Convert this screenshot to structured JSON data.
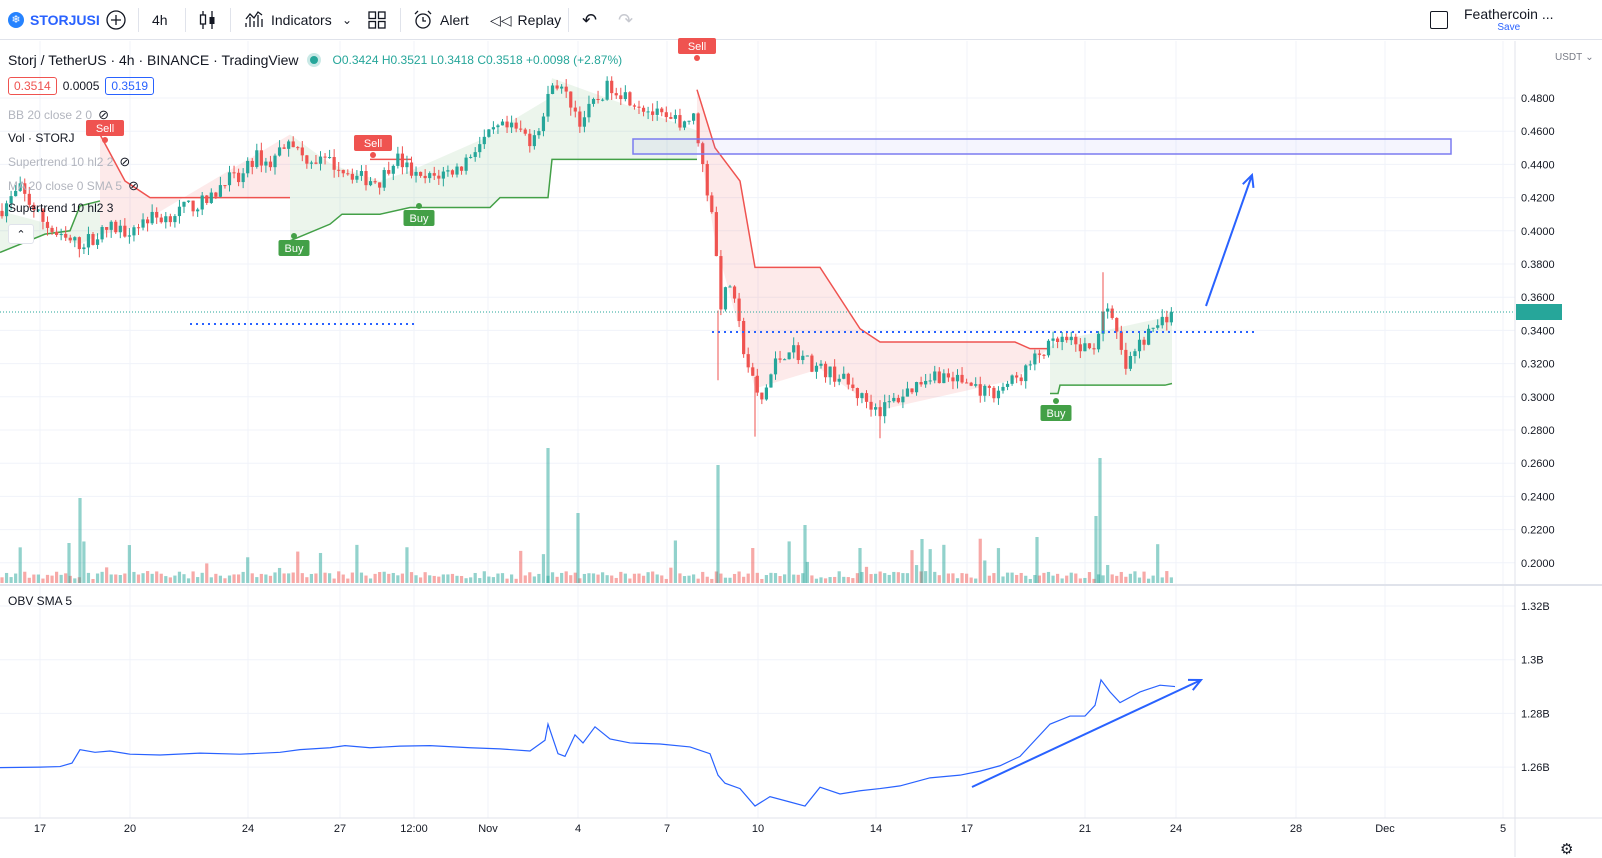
{
  "toolbar": {
    "symbol": "STORJUSI",
    "interval": "4h",
    "indicators_label": "Indicators",
    "alert_label": "Alert",
    "replay_label": "Replay",
    "layout_name": "Feathercoin ...",
    "save_label": "Save"
  },
  "header": {
    "title": "Storj / TetherUS · 4h · BINANCE · TradingView",
    "open": "O0.3424",
    "high": "H0.3521",
    "low": "L0.3418",
    "close": "C0.3518",
    "change": "+0.0098 (+2.87%)",
    "bid": "0.3514",
    "spread": "0.0005",
    "ask": "0.3519"
  },
  "legend": {
    "bb": "BB 20 close 2 0",
    "vol": "Vol · STORJ",
    "supertrend1": "Supertrend 10 hl2 2",
    "ma": "MA 20 close 0 SMA 5",
    "supertrend2": "Supertrend 10 hl2 3",
    "obv": "OBV SMA 5"
  },
  "price_axis": {
    "currency": "USDT",
    "labels": [
      "0.4800",
      "0.4600",
      "0.4400",
      "0.4200",
      "0.4000",
      "0.3800",
      "0.3600",
      "0.3400",
      "0.3200",
      "0.3000",
      "0.2800",
      "0.2600",
      "0.2400",
      "0.2200",
      "0.2000"
    ]
  },
  "obv_axis": {
    "labels": [
      "1.32B",
      "1.3B",
      "1.28B",
      "1.26B"
    ]
  },
  "time_axis": {
    "labels": [
      "17",
      "20",
      "24",
      "27",
      "12:00",
      "Nov",
      "4",
      "7",
      "10",
      "14",
      "17",
      "21",
      "24",
      "28",
      "Dec",
      "5"
    ]
  },
  "signals": {
    "sell": "Sell",
    "buy": "Buy"
  },
  "colors": {
    "up": "#26a69a",
    "down": "#ef5350",
    "supertrend_up": "#43a047",
    "supertrend_down": "#ef5350",
    "drawing": "#2962ff",
    "rect": "#7b7cf0"
  }
}
